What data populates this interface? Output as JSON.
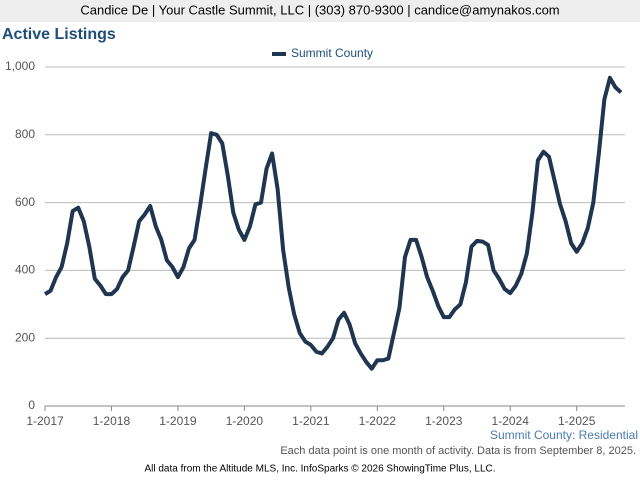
{
  "header": "Candice De | Your Castle Summit, LLC | (303) 870-9300 | candice@amynakos.com",
  "chart_data": {
    "type": "line",
    "title": "Active Listings",
    "categories": [
      "1-2017",
      null,
      null,
      null,
      null,
      null,
      null,
      null,
      null,
      null,
      null,
      null,
      "1-2018",
      null,
      null,
      null,
      null,
      null,
      null,
      null,
      null,
      null,
      null,
      null,
      "1-2019",
      null,
      null,
      null,
      null,
      null,
      null,
      null,
      null,
      null,
      null,
      null,
      "1-2020",
      null,
      null,
      null,
      null,
      null,
      null,
      null,
      null,
      null,
      null,
      null,
      "1-2021",
      null,
      null,
      null,
      null,
      null,
      null,
      null,
      null,
      null,
      null,
      null,
      "1-2022",
      null,
      null,
      null,
      null,
      null,
      null,
      null,
      null,
      null,
      null,
      null,
      "1-2023",
      null,
      null,
      null,
      null,
      null,
      null,
      null,
      null,
      null,
      null,
      null,
      "1-2024",
      null,
      null,
      null,
      null,
      null,
      null,
      null,
      null,
      null,
      null,
      null,
      "1-2025",
      null,
      null,
      null,
      null,
      null,
      null,
      null,
      null
    ],
    "series": [
      {
        "name": "Summit County",
        "color": "#1f3550",
        "values": [
          330,
          340,
          380,
          410,
          480,
          575,
          585,
          545,
          470,
          375,
          355,
          330,
          330,
          345,
          380,
          400,
          470,
          545,
          565,
          590,
          530,
          490,
          430,
          410,
          380,
          410,
          465,
          490,
          590,
          700,
          805,
          800,
          775,
          680,
          570,
          520,
          490,
          530,
          595,
          600,
          700,
          745,
          640,
          460,
          350,
          270,
          215,
          190,
          180,
          160,
          155,
          175,
          200,
          255,
          275,
          240,
          185,
          155,
          130,
          110,
          135,
          135,
          140,
          215,
          290,
          440,
          490,
          490,
          440,
          380,
          340,
          295,
          262,
          262,
          285,
          300,
          365,
          470,
          487,
          485,
          475,
          400,
          375,
          345,
          333,
          355,
          390,
          450,
          570,
          725,
          750,
          735,
          665,
          595,
          545,
          480,
          455,
          480,
          525,
          600,
          745,
          905,
          968,
          940,
          925
        ]
      }
    ],
    "ylim": [
      0,
      1000
    ],
    "yticks": [
      0,
      200,
      400,
      600,
      800,
      {
        "value": 1000,
        "label": "1,000"
      }
    ],
    "grid": true,
    "legend": "top",
    "source_label": "Summit County: Residential",
    "note": "Each data point is one month of activity. Data is from September 8, 2025."
  },
  "footer": "All data from the Altitude MLS, Inc. InfoSparks © 2026 ShowingTime Plus, LLC."
}
